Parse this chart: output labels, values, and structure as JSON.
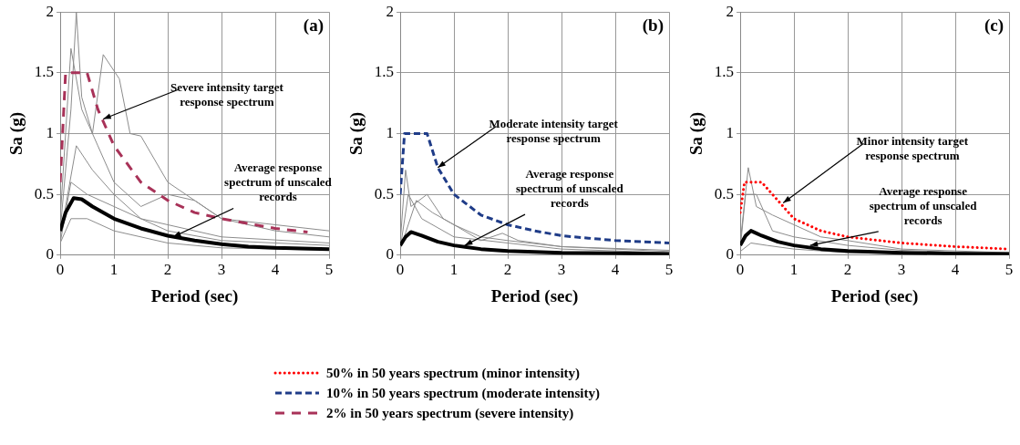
{
  "chart_data": [
    {
      "type": "line",
      "title": "(a)",
      "xlabel": "Period (sec)",
      "ylabel": "Sa (g)",
      "xlim": [
        0,
        5
      ],
      "xticks": [
        0,
        1,
        2,
        3,
        4,
        5
      ],
      "ylim": [
        0,
        2
      ],
      "yticks": [
        0,
        0.5,
        1,
        1.5,
        2
      ],
      "grid": true,
      "marker": "none",
      "legend": "bottom",
      "annotations": [
        {
          "text": "Severe intensity target response spectrum",
          "x": 0.8,
          "y": 1.12
        },
        {
          "text": "Average response spectrum of unscaled records",
          "x": 2.1,
          "y": 0.15
        }
      ],
      "series": [
        {
          "color": "#8c8c8c",
          "x": [
            0,
            0.2,
            0.3,
            0.4,
            0.6,
            0.8,
            1.1,
            1.3,
            1.5,
            2,
            2.5,
            3,
            4,
            5
          ],
          "values": [
            0.2,
            1.2,
            2,
            1.3,
            1,
            1.65,
            1.45,
            1,
            0.98,
            0.6,
            0.45,
            0.3,
            0.25,
            0.2
          ]
        },
        {
          "color": "#8c8c8c",
          "x": [
            0,
            0.2,
            0.4,
            0.7,
            1,
            1.5,
            2,
            2.5,
            3,
            4,
            5
          ],
          "values": [
            0.3,
            1.7,
            1.2,
            0.9,
            0.6,
            0.4,
            0.5,
            0.45,
            0.3,
            0.2,
            0.15
          ]
        },
        {
          "color": "#8c8c8c",
          "x": [
            0,
            0.3,
            0.6,
            1,
            1.5,
            2,
            3,
            5
          ],
          "values": [
            0.15,
            0.9,
            0.7,
            0.5,
            0.3,
            0.25,
            0.15,
            0.1
          ]
        },
        {
          "color": "#8c8c8c",
          "x": [
            0,
            0.2,
            0.5,
            1,
            2,
            3,
            5
          ],
          "values": [
            0.1,
            0.6,
            0.5,
            0.4,
            0.2,
            0.12,
            0.08
          ]
        },
        {
          "color": "#8c8c8c",
          "x": [
            0,
            0.2,
            0.5,
            1,
            2,
            3,
            5
          ],
          "values": [
            0.1,
            0.3,
            0.3,
            0.2,
            0.1,
            0.06,
            0.04
          ]
        },
        {
          "color": "#000000",
          "x": [
            0,
            0.1,
            0.25,
            0.4,
            0.6,
            1,
            1.5,
            2,
            2.5,
            3,
            3.5,
            4,
            5
          ],
          "values": [
            0.2,
            0.35,
            0.47,
            0.46,
            0.4,
            0.3,
            0.22,
            0.16,
            0.12,
            0.09,
            0.07,
            0.06,
            0.05
          ]
        },
        {
          "name": "2% in 50 years spectrum (severe intensity)",
          "color": "#a83258",
          "line_style": "dashed",
          "x": [
            0,
            0.1,
            0.5,
            0.7,
            1,
            1.5,
            2,
            2.5,
            3,
            3.5,
            4,
            4.6
          ],
          "values": [
            0.6,
            1.5,
            1.5,
            1.2,
            0.9,
            0.6,
            0.45,
            0.35,
            0.3,
            0.26,
            0.22,
            0.19
          ]
        }
      ]
    },
    {
      "type": "line",
      "title": "(b)",
      "xlabel": "Period (sec)",
      "ylabel": "Sa (g)",
      "xlim": [
        0,
        5
      ],
      "xticks": [
        0,
        1,
        2,
        3,
        4,
        5
      ],
      "ylim": [
        0,
        2
      ],
      "yticks": [
        0,
        0.5,
        1,
        1.5,
        2
      ],
      "grid": true,
      "marker": "none",
      "legend": "bottom",
      "annotations": [
        {
          "text": "Moderate intensity target response spectrum",
          "x": 0.7,
          "y": 0.72
        },
        {
          "text": "Average response spectrum of unscaled records",
          "x": 1.2,
          "y": 0.08
        }
      ],
      "series": [
        {
          "color": "#8c8c8c",
          "x": [
            0,
            0.1,
            0.2,
            0.5,
            0.8,
            1,
            1.5,
            1.9,
            2.2,
            3,
            5
          ],
          "values": [
            0.1,
            0.7,
            0.4,
            0.5,
            0.3,
            0.25,
            0.12,
            0.18,
            0.12,
            0.07,
            0.03
          ]
        },
        {
          "color": "#8c8c8c",
          "x": [
            0,
            0.15,
            0.4,
            1,
            2,
            3,
            5
          ],
          "values": [
            0.05,
            0.5,
            0.3,
            0.15,
            0.1,
            0.05,
            0.02
          ]
        },
        {
          "color": "#8c8c8c",
          "x": [
            0,
            0.3,
            0.6,
            1,
            1.5,
            2,
            3,
            5
          ],
          "values": [
            0.05,
            0.45,
            0.35,
            0.25,
            0.15,
            0.12,
            0.07,
            0.04
          ]
        },
        {
          "color": "#000000",
          "x": [
            0,
            0.1,
            0.2,
            0.4,
            0.7,
            1,
            1.5,
            2,
            3,
            4,
            5
          ],
          "values": [
            0.08,
            0.15,
            0.19,
            0.16,
            0.11,
            0.08,
            0.05,
            0.035,
            0.02,
            0.015,
            0.01
          ]
        },
        {
          "name": "10% in 50 years spectrum (moderate intensity)",
          "color": "#1f3c88",
          "line_style": "dashed",
          "x": [
            0,
            0.08,
            0.5,
            0.7,
            1,
            1.5,
            2,
            2.5,
            3,
            3.5,
            4,
            5
          ],
          "values": [
            0.5,
            1,
            1,
            0.72,
            0.5,
            0.33,
            0.25,
            0.2,
            0.16,
            0.14,
            0.12,
            0.1
          ]
        }
      ]
    },
    {
      "type": "line",
      "title": "(c)",
      "xlabel": "Period (sec)",
      "ylabel": "Sa (g)",
      "xlim": [
        0,
        5
      ],
      "xticks": [
        0,
        1,
        2,
        3,
        4,
        5
      ],
      "ylim": [
        0,
        2
      ],
      "yticks": [
        0,
        0.5,
        1,
        1.5,
        2
      ],
      "grid": true,
      "marker": "none",
      "legend": "bottom",
      "annotations": [
        {
          "text": "Minor intensity target response spectrum",
          "x": 0.8,
          "y": 0.43
        },
        {
          "text": "Average response spectrum of unscaled records",
          "x": 1.3,
          "y": 0.08
        }
      ],
      "series": [
        {
          "color": "#8c8c8c",
          "x": [
            0,
            0.15,
            0.3,
            0.6,
            1,
            1.5,
            2,
            3,
            5
          ],
          "values": [
            0.1,
            0.72,
            0.4,
            0.33,
            0.25,
            0.15,
            0.12,
            0.05,
            0.02
          ]
        },
        {
          "color": "#8c8c8c",
          "x": [
            0,
            0.1,
            0.3,
            0.6,
            1,
            2,
            3,
            5
          ],
          "values": [
            0.05,
            0.5,
            0.5,
            0.2,
            0.15,
            0.08,
            0.04,
            0.01
          ]
        },
        {
          "color": "#8c8c8c",
          "x": [
            0,
            0.2,
            0.5,
            1,
            2,
            5
          ],
          "values": [
            0.03,
            0.1,
            0.08,
            0.05,
            0.02,
            0.01
          ]
        },
        {
          "color": "#000000",
          "x": [
            0,
            0.1,
            0.2,
            0.4,
            0.7,
            1,
            1.5,
            2,
            3,
            4,
            5
          ],
          "values": [
            0.08,
            0.16,
            0.2,
            0.16,
            0.11,
            0.08,
            0.05,
            0.035,
            0.02,
            0.012,
            0.01
          ]
        },
        {
          "name": "50% in 50 years spectrum (minor intensity)",
          "color": "#ff0000",
          "line_style": "dotted",
          "x": [
            0,
            0.08,
            0.4,
            0.6,
            0.8,
            1,
            1.5,
            2,
            3,
            4,
            5
          ],
          "values": [
            0.35,
            0.6,
            0.6,
            0.5,
            0.4,
            0.3,
            0.2,
            0.15,
            0.1,
            0.07,
            0.05
          ]
        }
      ]
    }
  ]
}
